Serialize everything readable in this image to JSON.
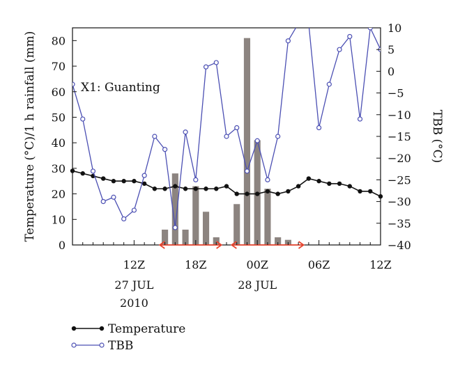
{
  "chart_data": {
    "type": "bar+line",
    "annotation": "X1: Guanting",
    "ylabel_left": "Temperature (°C)/1 h rainfall (mm)",
    "ylabel_right": "TBB (°C)",
    "ylim_left": [
      0,
      85
    ],
    "ylim_right": [
      -40,
      10
    ],
    "yticks_left": [
      0,
      10,
      20,
      30,
      40,
      50,
      60,
      70,
      80
    ],
    "yticks_right": [
      -40,
      -35,
      -30,
      -25,
      -20,
      -15,
      -10,
      -5,
      0,
      5,
      10
    ],
    "xlim_hours": [
      6,
      36
    ],
    "xticks": [
      {
        "hour": 12,
        "label": "12Z"
      },
      {
        "hour": 18,
        "label": "18Z"
      },
      {
        "hour": 24,
        "label": "00Z"
      },
      {
        "hour": 30,
        "label": "06Z"
      },
      {
        "hour": 36,
        "label": "12Z"
      }
    ],
    "date_labels": [
      {
        "hour": 12,
        "lines": [
          "27 JUL",
          "2010"
        ]
      },
      {
        "hour": 24,
        "lines": [
          "28 JUL"
        ]
      }
    ],
    "legend": [
      {
        "name": "Temperature",
        "style": "line-filled-marker"
      },
      {
        "name": "TBB",
        "style": "line-open-marker"
      }
    ],
    "colors": {
      "bar": "#8c8480",
      "temperature": "#111111",
      "tbb": "#4b4fb3",
      "arrow": "#e8442e"
    },
    "rainfall": {
      "x": [
        15,
        16,
        17,
        18,
        19,
        20,
        22,
        23,
        24,
        25,
        26,
        27,
        28
      ],
      "values": [
        6,
        28,
        6,
        23,
        13,
        3,
        16,
        81,
        41,
        22,
        3,
        2,
        0
      ]
    },
    "temperature": {
      "x": [
        6,
        7,
        8,
        9,
        10,
        11,
        12,
        13,
        14,
        15,
        16,
        17,
        18,
        19,
        20,
        21,
        22,
        23,
        24,
        25,
        26,
        27,
        28,
        29,
        30,
        31,
        32,
        33,
        34,
        35,
        36
      ],
      "values": [
        29,
        28,
        27,
        26,
        25,
        25,
        25,
        24,
        22,
        22,
        23,
        22,
        22,
        22,
        22,
        23,
        20,
        20,
        20,
        21,
        20,
        21,
        23,
        26,
        25,
        24,
        24,
        23,
        21,
        21,
        19
      ]
    },
    "tbb": {
      "x": [
        6,
        7,
        8,
        9,
        10,
        11,
        12,
        13,
        14,
        15,
        16,
        17,
        18,
        19,
        20,
        21,
        22,
        23,
        24,
        25,
        26,
        27,
        28,
        29,
        30,
        31,
        32,
        33,
        34,
        35,
        36
      ],
      "values": [
        -3,
        -11,
        -23,
        -30,
        -29,
        -34,
        -32,
        -24,
        -15,
        -18,
        -36,
        -14,
        -25,
        1,
        2,
        -15,
        -13,
        -23,
        -16,
        -25,
        -15,
        7,
        11,
        11,
        -13,
        -3,
        5,
        8,
        -11,
        10,
        5
      ]
    },
    "rain_periods": [
      {
        "start": 14.5,
        "end": 20.5
      },
      {
        "start": 21.5,
        "end": 28.5
      }
    ]
  }
}
